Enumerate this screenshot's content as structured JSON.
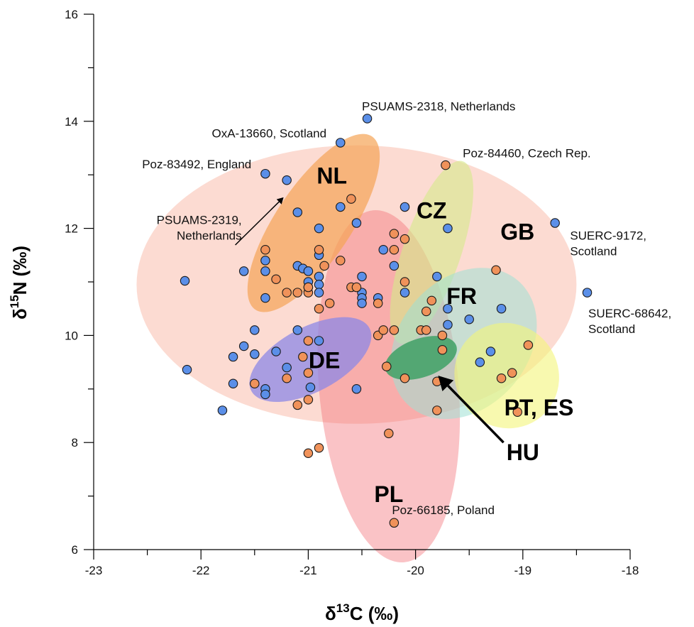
{
  "chart_data": {
    "type": "scatter",
    "title": "",
    "xlabel": {
      "prefix": "δ",
      "sup": "13",
      "suffix": "C (‰)"
    },
    "ylabel": {
      "prefix": "δ",
      "sup": "15",
      "suffix": "N (‰)"
    },
    "xlim": [
      -23,
      -18
    ],
    "ylim": [
      6,
      16
    ],
    "x_ticks": [
      -23,
      -22,
      -21,
      -20,
      -19,
      -18
    ],
    "x_tick_labels": [
      "-23",
      "-22",
      "-21",
      "-20",
      "-19",
      "-18"
    ],
    "y_ticks": [
      6,
      8,
      10,
      12,
      14,
      16
    ],
    "y_tick_labels": [
      "6",
      "8",
      "10",
      "12",
      "14",
      "16"
    ],
    "grid": false,
    "colors": {
      "blue": "#5b8fe8",
      "orange": "#f0925a"
    },
    "ellipses": [
      {
        "label": "GB",
        "color": "#f9b7a6",
        "opacity": 0.5,
        "cx": -20.55,
        "cy": 10.95,
        "rx": 2.05,
        "ry": 2.6,
        "rot": 0,
        "label_x": -19.05,
        "label_y": 11.9
      },
      {
        "label": "PL",
        "color": "#f26a70",
        "opacity": 0.4,
        "cx": -20.25,
        "cy": 9.05,
        "rx": 0.65,
        "ry": 3.3,
        "rot": -5,
        "label_x": -20.25,
        "label_y": 7.0
      },
      {
        "label": "NL",
        "color": "#f5a456",
        "opacity": 0.7,
        "cx": -20.95,
        "cy": 12.1,
        "rx": 0.35,
        "ry": 1.95,
        "rot": 34,
        "label_x": -20.78,
        "label_y": 12.95
      },
      {
        "label": "CZ",
        "color": "#d5e98a",
        "opacity": 0.6,
        "cx": -19.85,
        "cy": 11.55,
        "rx": 0.27,
        "ry": 1.8,
        "rot": 19,
        "label_x": -19.85,
        "label_y": 12.3
      },
      {
        "label": "FR",
        "color": "#9ee0d3",
        "opacity": 0.55,
        "cx": -19.55,
        "cy": 9.85,
        "rx": 0.6,
        "ry": 1.55,
        "rot": 41,
        "label_x": -19.57,
        "label_y": 10.7
      },
      {
        "label": "PT, ES",
        "color": "#f3f57a",
        "opacity": 0.6,
        "cx": -19.15,
        "cy": 9.25,
        "rx": 0.48,
        "ry": 1.0,
        "rot": -40,
        "label_x": -18.85,
        "label_y": 8.62
      },
      {
        "label": "DE",
        "color": "#8e88e6",
        "opacity": 0.75,
        "cx": -20.98,
        "cy": 9.55,
        "rx": 0.3,
        "ry": 1.25,
        "rot": 62,
        "label_x": -20.85,
        "label_y": 9.5
      },
      {
        "label": "HU",
        "color": "#3ea165",
        "opacity": 0.85,
        "cx": -19.95,
        "cy": 9.58,
        "rx": 0.18,
        "ry": 0.7,
        "rot": 71,
        "label_x": -19.0,
        "label_y": 7.78
      }
    ],
    "series": [
      {
        "name": "blue",
        "color": "#5b8fe8",
        "points": [
          [
            -22.15,
            11.02
          ],
          [
            -22.13,
            9.36
          ],
          [
            -21.8,
            8.6
          ],
          [
            -21.7,
            9.1
          ],
          [
            -21.7,
            9.6
          ],
          [
            -21.6,
            11.2
          ],
          [
            -21.6,
            9.8
          ],
          [
            -21.5,
            10.1
          ],
          [
            -21.5,
            9.65
          ],
          [
            -21.4,
            13.02
          ],
          [
            -21.4,
            11.4
          ],
          [
            -21.4,
            11.2
          ],
          [
            -21.4,
            10.7
          ],
          [
            -21.4,
            9.0
          ],
          [
            -21.4,
            8.9
          ],
          [
            -21.3,
            9.7
          ],
          [
            -21.2,
            12.9
          ],
          [
            -21.2,
            9.4
          ],
          [
            -21.1,
            12.3
          ],
          [
            -21.1,
            11.3
          ],
          [
            -21.1,
            10.1
          ],
          [
            -21.05,
            11.25
          ],
          [
            -21.0,
            11.2
          ],
          [
            -21.0,
            11.0
          ],
          [
            -21.0,
            10.9
          ],
          [
            -20.98,
            9.03
          ],
          [
            -20.9,
            12.0
          ],
          [
            -20.9,
            11.5
          ],
          [
            -20.9,
            11.1
          ],
          [
            -20.9,
            10.95
          ],
          [
            -20.9,
            10.8
          ],
          [
            -20.9,
            9.9
          ],
          [
            -20.7,
            13.6
          ],
          [
            -20.7,
            12.4
          ],
          [
            -20.55,
            12.1
          ],
          [
            -20.55,
            9.0
          ],
          [
            -20.5,
            11.1
          ],
          [
            -20.5,
            10.8
          ],
          [
            -20.5,
            10.7
          ],
          [
            -20.5,
            10.6
          ],
          [
            -20.45,
            14.05
          ],
          [
            -20.35,
            10.7
          ],
          [
            -20.3,
            11.6
          ],
          [
            -20.2,
            11.3
          ],
          [
            -20.1,
            12.4
          ],
          [
            -20.1,
            10.8
          ],
          [
            -19.8,
            11.1
          ],
          [
            -19.7,
            12.0
          ],
          [
            -19.7,
            10.5
          ],
          [
            -19.7,
            10.2
          ],
          [
            -19.5,
            10.3
          ],
          [
            -19.4,
            9.5
          ],
          [
            -19.3,
            9.7
          ],
          [
            -19.2,
            10.5
          ],
          [
            -18.7,
            12.1
          ],
          [
            -18.4,
            10.8
          ]
        ]
      },
      {
        "name": "orange",
        "color": "#f0925a",
        "points": [
          [
            -21.5,
            9.1
          ],
          [
            -21.4,
            11.6
          ],
          [
            -21.3,
            11.05
          ],
          [
            -21.2,
            10.8
          ],
          [
            -21.2,
            9.2
          ],
          [
            -21.1,
            10.8
          ],
          [
            -21.1,
            8.7
          ],
          [
            -21.05,
            9.6
          ],
          [
            -21.0,
            10.8
          ],
          [
            -21.0,
            10.9
          ],
          [
            -21.0,
            9.9
          ],
          [
            -21.0,
            9.3
          ],
          [
            -21.0,
            8.8
          ],
          [
            -21.0,
            7.8
          ],
          [
            -20.9,
            11.6
          ],
          [
            -20.9,
            10.5
          ],
          [
            -20.9,
            7.9
          ],
          [
            -20.85,
            11.3
          ],
          [
            -20.8,
            10.6
          ],
          [
            -20.7,
            11.4
          ],
          [
            -20.6,
            12.55
          ],
          [
            -20.6,
            10.9
          ],
          [
            -20.55,
            10.9
          ],
          [
            -20.35,
            10.6
          ],
          [
            -20.35,
            10.0
          ],
          [
            -20.3,
            10.1
          ],
          [
            -20.27,
            9.42
          ],
          [
            -20.25,
            8.17
          ],
          [
            -20.2,
            11.9
          ],
          [
            -20.2,
            11.6
          ],
          [
            -20.2,
            10.1
          ],
          [
            -20.2,
            6.5
          ],
          [
            -20.1,
            11.8
          ],
          [
            -20.1,
            11.0
          ],
          [
            -20.1,
            9.2
          ],
          [
            -19.95,
            10.1
          ],
          [
            -19.9,
            10.45
          ],
          [
            -19.9,
            10.1
          ],
          [
            -19.85,
            10.65
          ],
          [
            -19.8,
            9.14
          ],
          [
            -19.8,
            8.6
          ],
          [
            -19.75,
            10.0
          ],
          [
            -19.75,
            9.73
          ],
          [
            -19.72,
            13.18
          ],
          [
            -19.25,
            11.22
          ],
          [
            -19.2,
            9.2
          ],
          [
            -19.1,
            9.3
          ],
          [
            -19.05,
            8.57
          ],
          [
            -18.95,
            9.82
          ]
        ]
      }
    ],
    "annotations": [
      {
        "lines": [
          "PSUAMS-2318, Netherlands"
        ],
        "x": -20.5,
        "y": 14.2,
        "anchor": "start"
      },
      {
        "lines": [
          "OxA-13660, Scotland"
        ],
        "x": -20.83,
        "y": 13.7,
        "anchor": "end"
      },
      {
        "lines": [
          "Poz-83492, England"
        ],
        "x": -21.53,
        "y": 13.12,
        "anchor": "end"
      },
      {
        "lines": [
          "Poz-84460, Czech Rep."
        ],
        "x": -19.56,
        "y": 13.33,
        "anchor": "start"
      },
      {
        "lines": [
          "PSUAMS-2319,",
          "Netherlands"
        ],
        "x": -21.62,
        "y": 12.08,
        "anchor": "end"
      },
      {
        "lines": [
          "SUERC-9172,",
          "Scotland"
        ],
        "x": -18.56,
        "y": 11.79,
        "anchor": "start"
      },
      {
        "lines": [
          "SUERC-68642,",
          "Scotland"
        ],
        "x": -18.39,
        "y": 10.34,
        "anchor": "start"
      },
      {
        "lines": [
          "Poz-66185, Poland"
        ],
        "x": -20.22,
        "y": 6.66,
        "anchor": "start"
      }
    ],
    "arrows": [
      {
        "from": [
          -21.68,
          11.69
        ],
        "to": [
          -21.23,
          12.58
        ],
        "width": 1.5,
        "head": 9
      },
      {
        "from": [
          -19.18,
          8.0
        ],
        "to": [
          -19.79,
          9.25
        ],
        "width": 3.5,
        "head": 20
      }
    ]
  }
}
